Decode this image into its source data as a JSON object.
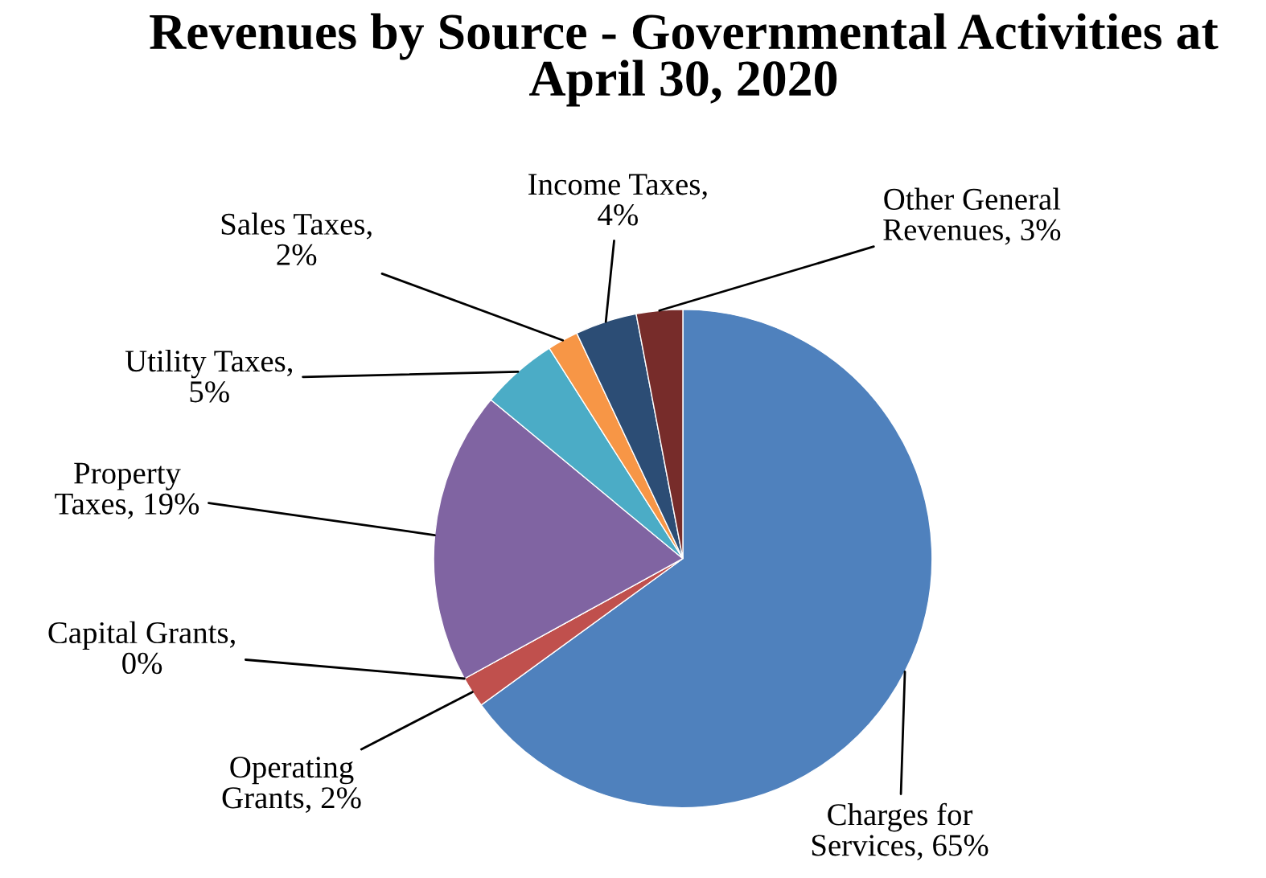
{
  "chart_data": {
    "type": "pie",
    "title": "Revenues by Source - Governmental Activities at April 30, 2020",
    "categories": [
      "Charges for Services, 65%",
      "Operating Grants, 2%",
      "Capital Grants, 0%",
      "Property Taxes, 19%",
      "Utility Taxes, 5%",
      "Sales Taxes, 2%",
      "Income Taxes, 4%",
      "Other General Revenues, 3%"
    ],
    "values": [
      65,
      2,
      0,
      19,
      5,
      2,
      4,
      3
    ],
    "colors": [
      "#4f81bd",
      "#c0504d",
      "#9bbb59",
      "#8064a2",
      "#4bacc6",
      "#f79646",
      "#2c4d75",
      "#772c2a"
    ],
    "legend": false
  }
}
